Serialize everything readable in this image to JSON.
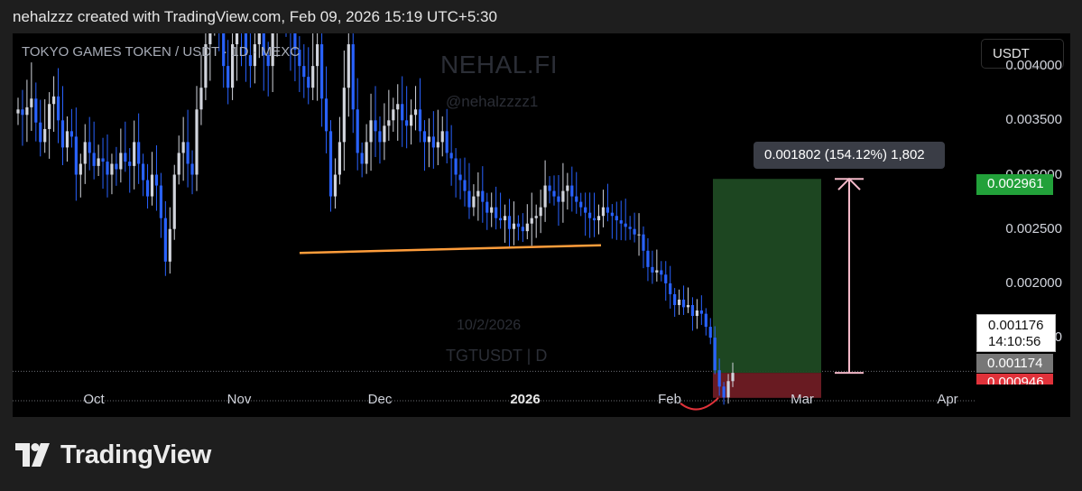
{
  "header": {
    "text": "nehalzzz created with TradingView.com, Feb 09, 2026 15:19 UTC+5:30"
  },
  "chart": {
    "title": "TOKYO GAMES TOKEN / USDT · 1D · MEXC",
    "currency_button": "USDT",
    "watermark": {
      "brand": "NEHAL.FI",
      "handle": "@nehalzzzz1",
      "date": "10/2/2026",
      "symbol": "TGTUSDT | D"
    },
    "measure_label": "0.001802 (154.12%) 1,802",
    "price_tags": {
      "target": "0.002961",
      "current": "0.001176",
      "countdown": "14:10:56",
      "previous": "0.001174",
      "stop": "0.000946"
    },
    "colors": {
      "up": "#d1d4dc",
      "down": "#2962ff",
      "trendline": "#ff9d3b",
      "profit_zone": "#1f4a23",
      "loss_zone": "#6f1c24",
      "arrow": "#f3b8c8",
      "target_tag": "#22a13a",
      "stop_tag": "#e0323a"
    },
    "logo_text": "TradingView"
  },
  "chart_data": {
    "type": "candlestick",
    "symbol": "TOKYO GAMES TOKEN / USDT",
    "interval": "1D",
    "exchange": "MEXC",
    "y_axis": {
      "ticks": [
        "0.004000",
        "0.003500",
        "0.003000",
        "0.002500",
        "0.002000",
        "0.001500"
      ],
      "ylim": [
        0.00077,
        0.0043
      ]
    },
    "x_axis": {
      "ticks": [
        "Oct",
        "Nov",
        "Dec",
        "2026",
        "Feb",
        "Mar",
        "Apr"
      ]
    },
    "series_close": [
      0.0036,
      0.00355,
      0.00362,
      0.0037,
      0.00348,
      0.0033,
      0.00342,
      0.00365,
      0.00372,
      0.0035,
      0.00325,
      0.0034,
      0.00335,
      0.003,
      0.0031,
      0.0033,
      0.0032,
      0.00308,
      0.00315,
      0.00312,
      0.003,
      0.0031,
      0.00305,
      0.0032,
      0.00312,
      0.00308,
      0.0033,
      0.0031,
      0.00295,
      0.0028,
      0.003,
      0.0029,
      0.0026,
      0.0022,
      0.0025,
      0.003,
      0.0032,
      0.0033,
      0.0031,
      0.003,
      0.0036,
      0.0038,
      0.0042,
      0.0046,
      0.0048,
      0.0044,
      0.004,
      0.0038,
      0.0042,
      0.0047,
      0.0043,
      0.0041,
      0.004,
      0.0042,
      0.0043,
      0.0041,
      0.004,
      0.0043,
      0.0045,
      0.0046,
      0.0044,
      0.0043,
      0.00415,
      0.004,
      0.0039,
      0.0038,
      0.004,
      0.0042,
      0.0037,
      0.0034,
      0.0028,
      0.003,
      0.0033,
      0.0038,
      0.0042,
      0.0036,
      0.0032,
      0.0031,
      0.0033,
      0.0035,
      0.0034,
      0.0033,
      0.00345,
      0.0035,
      0.0036,
      0.00365,
      0.0035,
      0.00345,
      0.00355,
      0.0036,
      0.0034,
      0.0033,
      0.00335,
      0.00325,
      0.0033,
      0.0034,
      0.0032,
      0.00315,
      0.003,
      0.00295,
      0.00285,
      0.0027,
      0.0028,
      0.00285,
      0.00275,
      0.00265,
      0.0027,
      0.0026,
      0.00258,
      0.00262,
      0.0025,
      0.00255,
      0.00252,
      0.00248,
      0.00255,
      0.0026,
      0.00262,
      0.0027,
      0.0029,
      0.00285,
      0.0028,
      0.00275,
      0.00285,
      0.0029,
      0.0028,
      0.00275,
      0.0027,
      0.00265,
      0.0026,
      0.00258,
      0.00262,
      0.0027,
      0.00265,
      0.00262,
      0.00258,
      0.00255,
      0.00252,
      0.0025,
      0.00245,
      0.00245,
      0.0023,
      0.00215,
      0.0021,
      0.00212,
      0.00208,
      0.002,
      0.0019,
      0.0018,
      0.00185,
      0.00178,
      0.0018,
      0.0017,
      0.00175,
      0.00172,
      0.0016,
      0.0015,
      0.0012,
      0.00105,
      0.00095,
      0.0011,
      0.001176
    ],
    "trendline": {
      "from_index": 30,
      "from_price": 0.00228,
      "to_index": 137,
      "to_price": 0.00235
    },
    "position": {
      "entry": 0.001176,
      "target": 0.002961,
      "stop": 0.000946
    },
    "measurement": {
      "price_change": 0.001802,
      "percent": "154.12%",
      "ticks": "1,802"
    },
    "reference_lines": [
      0.00119,
      0.00092
    ]
  }
}
